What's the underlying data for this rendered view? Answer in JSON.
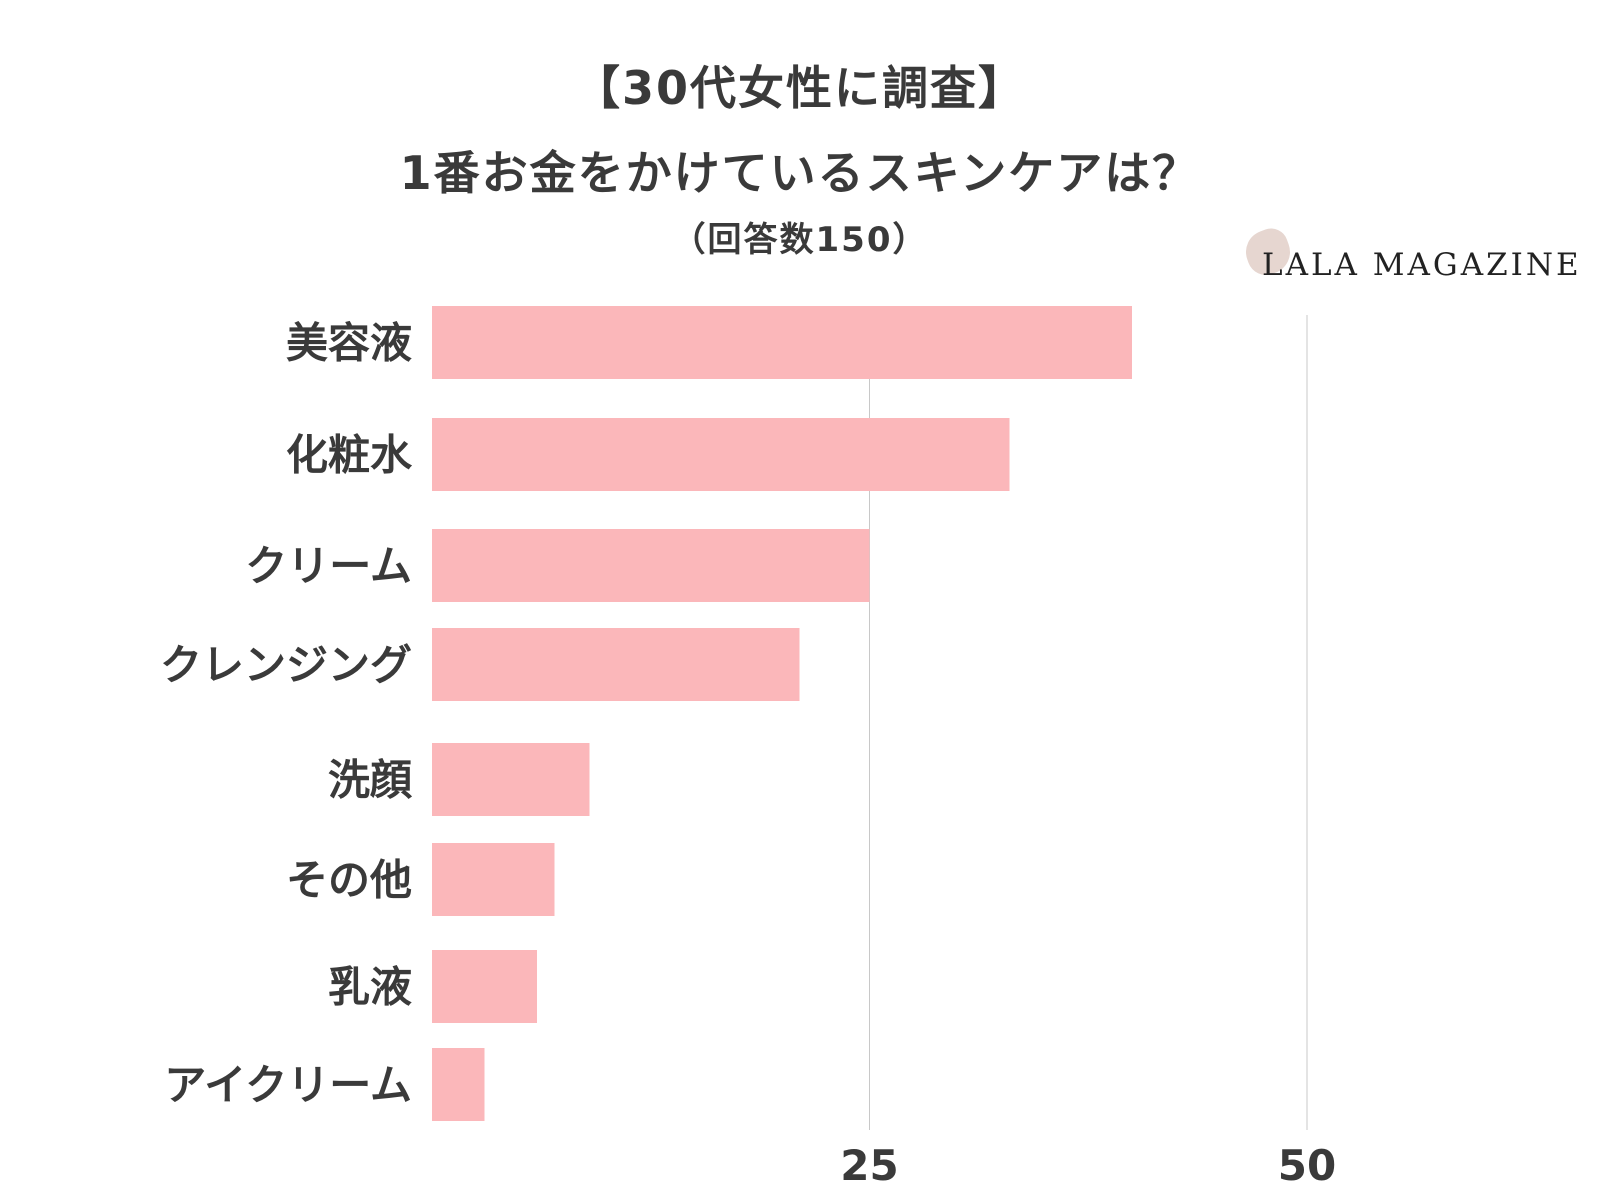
{
  "title_lines": [
    "【30代女性に調査】",
    "1番お金をかけているスキンケアは？"
  ],
  "subtitle": "（回答数150）",
  "logo": {
    "text": "LALA MAGAZINE"
  },
  "colors": {
    "bar": "#fbb7ba",
    "grid": "#c8c8c8",
    "text": "#3a3a3a"
  },
  "chart_data": {
    "type": "bar",
    "orientation": "horizontal",
    "categories": [
      "美容液",
      "化粧水",
      "クリーム",
      "クレンジング",
      "洗顔",
      "その他",
      "乳液",
      "アイクリーム"
    ],
    "values": [
      40,
      33,
      25,
      21,
      9,
      7,
      6,
      3
    ],
    "xlim": [
      0,
      50
    ],
    "xticks": [
      "25",
      "50"
    ],
    "grid": true,
    "legend": "none"
  }
}
